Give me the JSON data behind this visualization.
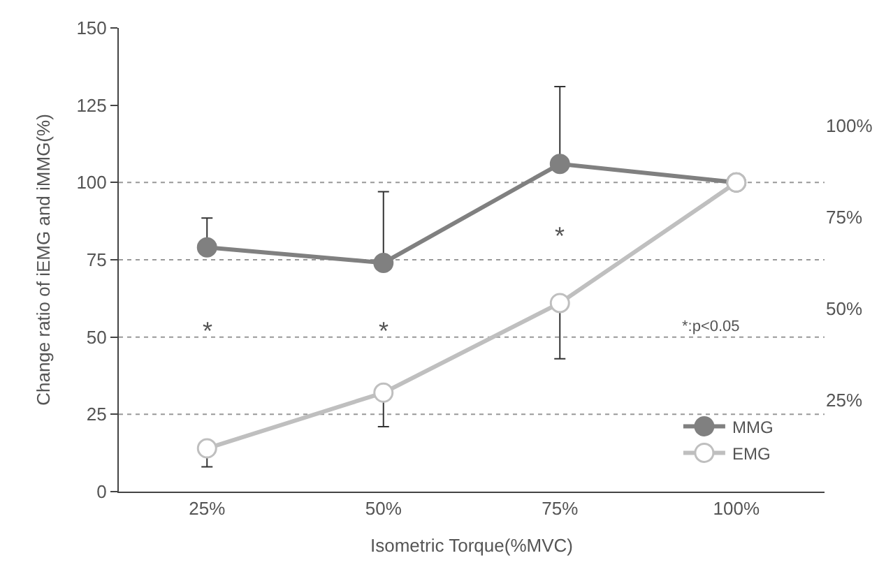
{
  "chart_data": {
    "type": "line",
    "xlabel": "Isometric Torque(%MVC)",
    "ylabel": "Change ratio of iEMG and iMMG(%)",
    "categories": [
      "25%",
      "50%",
      "75%",
      "100%"
    ],
    "series": [
      {
        "name": "MMG",
        "color": "#808080",
        "values": [
          79,
          74,
          106,
          100
        ],
        "errors": [
          [
            79,
            88.5
          ],
          [
            74,
            97
          ],
          [
            106,
            131
          ],
          null
        ]
      },
      {
        "name": "EMG",
        "color": "#bfbfbf",
        "values": [
          14,
          32,
          61,
          100
        ],
        "errors": [
          [
            8,
            14
          ],
          [
            21,
            32
          ],
          [
            43,
            61
          ],
          null
        ]
      }
    ],
    "ylim": [
      0,
      150
    ],
    "yticks": [
      0,
      25,
      50,
      75,
      100,
      125,
      150
    ],
    "y2lim": [
      0,
      126.6
    ],
    "y2ticks": [
      {
        "value": 25,
        "label": "25%"
      },
      {
        "value": 50,
        "label": "50%"
      },
      {
        "value": 75,
        "label": "75%"
      },
      {
        "value": 100,
        "label": "100%"
      }
    ],
    "ref_lines": [
      {
        "axis": "y",
        "value": 25,
        "line_style": "dotted",
        "color": "#999999"
      },
      {
        "axis": "y",
        "value": 50,
        "line_style": "dotted",
        "color": "#999999"
      },
      {
        "axis": "y",
        "value": 75,
        "line_style": "dotted",
        "color": "#999999"
      },
      {
        "axis": "y",
        "value": 100,
        "line_style": "dotted",
        "color": "#999999"
      }
    ],
    "annotations": [
      "*",
      "*",
      "*",
      "*:p<0.05"
    ],
    "legend": "bottom right",
    "marker": "circle",
    "line_style": "solid",
    "grid": false
  }
}
